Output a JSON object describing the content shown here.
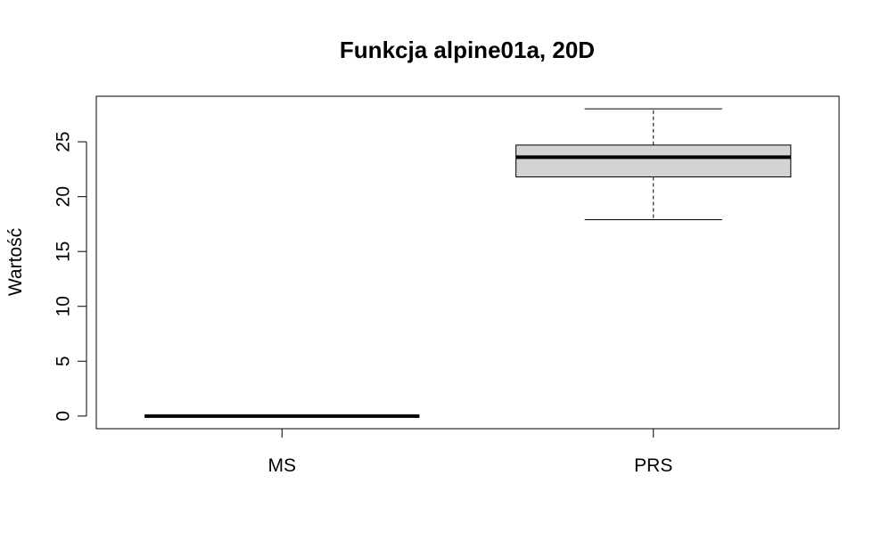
{
  "chart_data": {
    "type": "box",
    "title": "Funkcja alpine01a, 20D",
    "xlabel": "",
    "ylabel": "Wartość",
    "categories": [
      "MS",
      "PRS"
    ],
    "boxes": [
      {
        "name": "MS",
        "min": 0.0,
        "q1": 0.0,
        "median": 0.0,
        "q3": 0.0,
        "max": 0.0
      },
      {
        "name": "PRS",
        "min": 17.9,
        "q1": 21.8,
        "median": 23.6,
        "q3": 24.7,
        "max": 28.0
      }
    ],
    "y_ticks": [
      0,
      5,
      10,
      15,
      20,
      25
    ],
    "y_tick_labels": [
      "0",
      "5",
      "10",
      "15",
      "20",
      "25"
    ],
    "ylim": [
      -1.15,
      29.15
    ],
    "grid": false,
    "colors": {
      "box_fill": "#d3d3d3",
      "line": "#000000",
      "background": "#ffffff"
    }
  }
}
